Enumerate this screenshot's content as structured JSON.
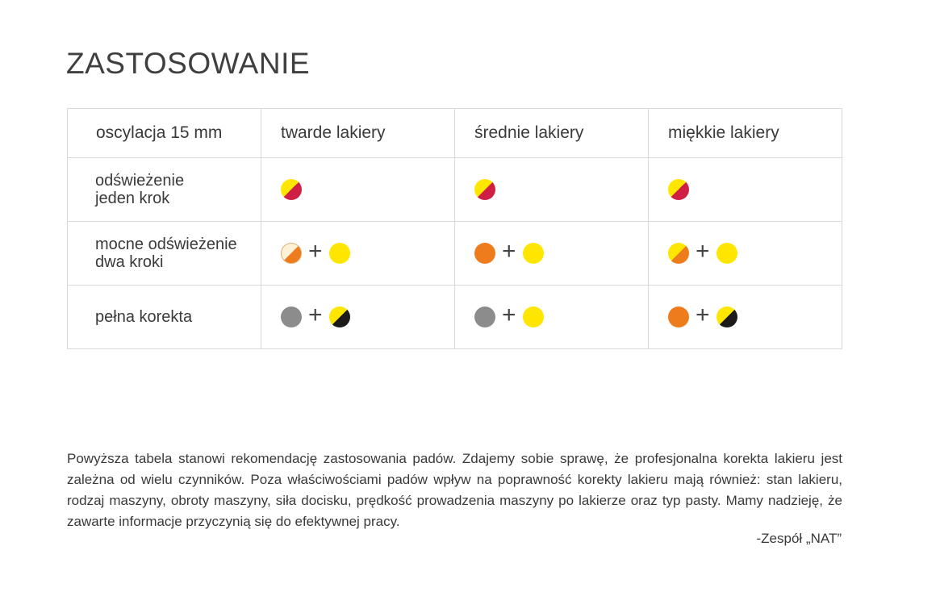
{
  "title": "ZASTOSOWANIE",
  "table": {
    "header": [
      "oscylacja 15 mm",
      "twarde lakiery",
      "średnie lakiery",
      "miękkie lakiery"
    ],
    "rows": [
      {
        "label_line1": "odświeżenie",
        "label_line2": "jeden krok",
        "cells": [
          {
            "pads": [
              "yellow-red-icon"
            ]
          },
          {
            "pads": [
              "yellow-red-icon"
            ]
          },
          {
            "pads": [
              "yellow-red-icon"
            ]
          }
        ]
      },
      {
        "label_line1": "mocne odświeżenie",
        "label_line2": "dwa kroki",
        "cells": [
          {
            "pads": [
              "cream-orange-icon",
              "yellow-icon"
            ]
          },
          {
            "pads": [
              "orange-icon",
              "yellow-icon"
            ]
          },
          {
            "pads": [
              "yellow-orange-icon",
              "yellow-icon"
            ]
          }
        ]
      },
      {
        "label_line1": "pełna korekta",
        "label_line2": "",
        "cells": [
          {
            "pads": [
              "gray-icon",
              "yellow-black-icon"
            ]
          },
          {
            "pads": [
              "gray-icon",
              "yellow-icon"
            ]
          },
          {
            "pads": [
              "orange-icon",
              "yellow-black-icon"
            ]
          }
        ]
      }
    ],
    "plus_sign": "+"
  },
  "colors": {
    "yellow": "#ffe600",
    "orange": "#ee7b1c",
    "red": "#cf1f45",
    "gray": "#8c8c8c",
    "black": "#1c1a1a",
    "cream": "#fdf2d6"
  },
  "note": "Powyższa tabela stanowi rekomendację zastosowania padów. Zdajemy sobie sprawę, że profesjonalna korekta lakieru jest zależna od wielu czynników. Poza właściwościami padów wpływ na poprawność korekty lakieru mają również: stan lakieru, rodzaj maszyny, obroty maszyny, siła docisku, prędkość prowadzenia maszyny po lakierze oraz typ pasty. Mamy nadzieję, że zawarte informacje przyczynią się  do efektywnej pracy.",
  "signature": "-Zespół „NAT”"
}
